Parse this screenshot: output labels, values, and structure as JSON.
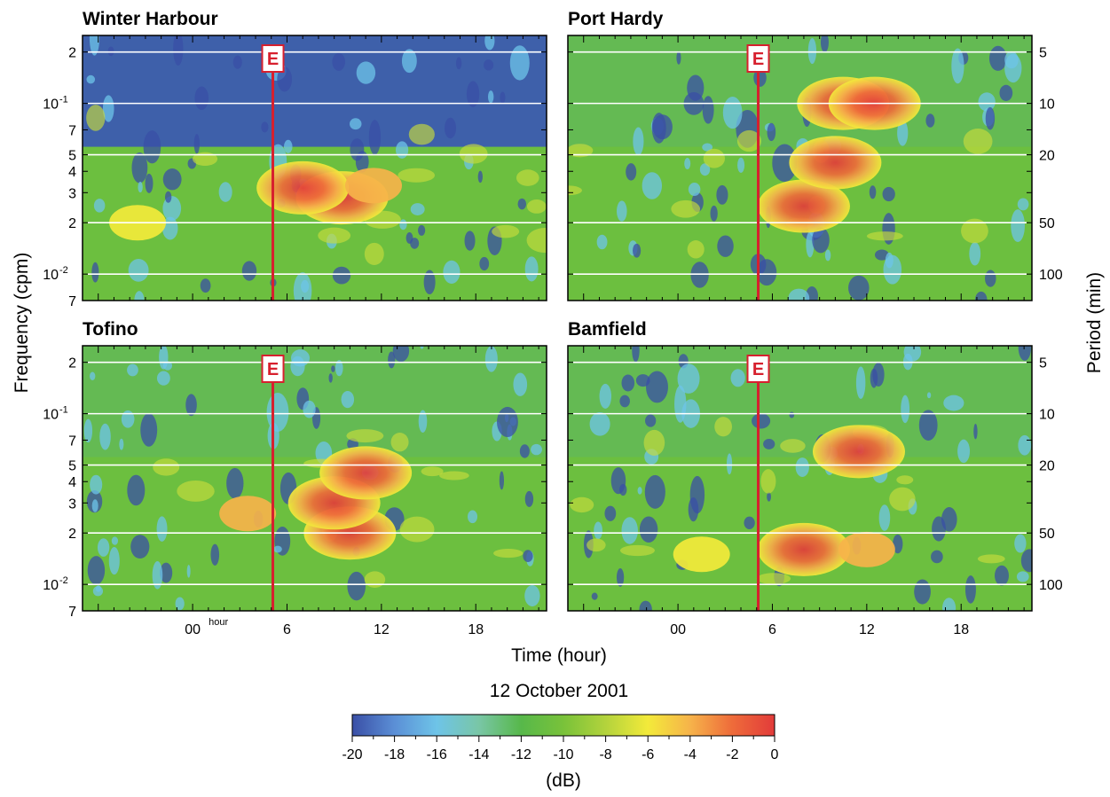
{
  "chart_data": [
    {
      "type": "heatmap",
      "title": "Winter Harbour",
      "x_ticks": [
        "00",
        "6",
        "12",
        "18"
      ],
      "event_time_hour": 5.1,
      "event_label": "E",
      "hotspots": [
        {
          "t_hour": 9.5,
          "freq_cpm": 0.028,
          "db": -1
        },
        {
          "t_hour": 7.0,
          "freq_cpm": 0.032,
          "db": -3
        },
        {
          "t_hour": 11.5,
          "freq_cpm": 0.033,
          "db": -4
        },
        {
          "t_hour": -3.5,
          "freq_cpm": 0.02,
          "db": -6
        }
      ]
    },
    {
      "type": "heatmap",
      "title": "Port Hardy",
      "x_ticks": [
        "00",
        "6",
        "12",
        "18"
      ],
      "event_time_hour": 5.1,
      "event_label": "E",
      "hotspots": [
        {
          "t_hour": 10.5,
          "freq_cpm": 0.1,
          "db": -1
        },
        {
          "t_hour": 8.0,
          "freq_cpm": 0.025,
          "db": -2
        },
        {
          "t_hour": 12.5,
          "freq_cpm": 0.1,
          "db": -2
        },
        {
          "t_hour": 10.0,
          "freq_cpm": 0.045,
          "db": -3
        }
      ]
    },
    {
      "type": "heatmap",
      "title": "Tofino",
      "x_ticks": [
        "00",
        "6",
        "12",
        "18"
      ],
      "x_tick_suffix": "hour",
      "event_time_hour": 5.1,
      "event_label": "E",
      "hotspots": [
        {
          "t_hour": 10.0,
          "freq_cpm": 0.02,
          "db": 0
        },
        {
          "t_hour": 9.0,
          "freq_cpm": 0.03,
          "db": -3
        },
        {
          "t_hour": 11.0,
          "freq_cpm": 0.045,
          "db": -3
        },
        {
          "t_hour": 3.5,
          "freq_cpm": 0.026,
          "db": -5
        }
      ]
    },
    {
      "type": "heatmap",
      "title": "Bamfield",
      "x_ticks": [
        "00",
        "6",
        "12",
        "18"
      ],
      "event_time_hour": 5.1,
      "event_label": "E",
      "hotspots": [
        {
          "t_hour": 8.0,
          "freq_cpm": 0.016,
          "db": -1
        },
        {
          "t_hour": 11.5,
          "freq_cpm": 0.06,
          "db": -1
        },
        {
          "t_hour": 12.0,
          "freq_cpm": 0.016,
          "db": -4
        },
        {
          "t_hour": 1.5,
          "freq_cpm": 0.015,
          "db": -6
        }
      ]
    }
  ],
  "axes": {
    "x_label": "Time (hour)",
    "date_label": "12 October 2001",
    "y_left_label": "Frequency (cpm)",
    "y_right_label": "Period (min)",
    "x_range_hours": [
      -7,
      22.5
    ],
    "y_range_cpm": [
      0.007,
      0.25
    ],
    "y_scale": "log",
    "freq_ticks": [
      {
        "value": 0.007,
        "label": "7"
      },
      {
        "value": 0.01,
        "label": "10",
        "sup": "-2"
      },
      {
        "value": 0.02,
        "label": "2"
      },
      {
        "value": 0.03,
        "label": "3"
      },
      {
        "value": 0.04,
        "label": "4"
      },
      {
        "value": 0.05,
        "label": "5"
      },
      {
        "value": 0.07,
        "label": "7"
      },
      {
        "value": 0.1,
        "label": "10",
        "sup": "-1"
      },
      {
        "value": 0.2,
        "label": "2"
      }
    ],
    "period_ticks": [
      {
        "minutes": 5,
        "label": "5"
      },
      {
        "minutes": 10,
        "label": "10"
      },
      {
        "minutes": 20,
        "label": "20"
      },
      {
        "minutes": 50,
        "label": "50"
      },
      {
        "minutes": 100,
        "label": "100"
      }
    ]
  },
  "colorbar": {
    "label": "(dB)",
    "range": [
      -20,
      0
    ],
    "ticks": [
      "-20",
      "-18",
      "-16",
      "-14",
      "-12",
      "-10",
      "-8",
      "-6",
      "-4",
      "-2",
      "0"
    ],
    "colors": [
      "#3a4fa6",
      "#5b8fd6",
      "#6ec4e8",
      "#79c6a6",
      "#57b84a",
      "#79c23a",
      "#b3d33c",
      "#f3ea3a",
      "#f6b34a",
      "#ee6b3a",
      "#e23b3a"
    ]
  }
}
